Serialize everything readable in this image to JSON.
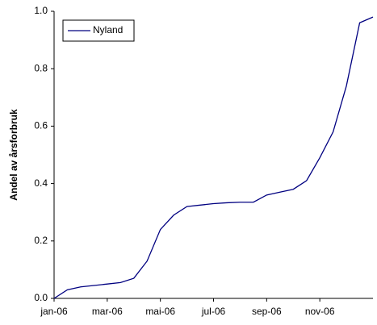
{
  "chart_data": {
    "type": "line",
    "y_label": "Andel av årsforbruk",
    "categories": [
      "jan-06",
      null,
      null,
      null,
      "mar-06",
      null,
      null,
      null,
      "mai-06",
      null,
      null,
      null,
      "jul-06",
      null,
      null,
      null,
      "sep-06",
      null,
      null,
      null,
      "nov-06",
      null,
      null,
      null,
      null
    ],
    "series": [
      {
        "name": "Nyland",
        "color": "#000080",
        "values": [
          0.0,
          0.03,
          0.04,
          0.045,
          0.05,
          0.055,
          0.07,
          0.13,
          0.24,
          0.29,
          0.32,
          0.325,
          0.33,
          0.333,
          0.335,
          0.335,
          0.36,
          0.37,
          0.38,
          0.41,
          0.49,
          0.58,
          0.74,
          0.96,
          0.98
        ]
      }
    ],
    "ylim": [
      0,
      1
    ],
    "yticks": [
      {
        "value": 0,
        "label": "0.0"
      },
      0.2,
      0.4,
      0.6,
      0.8,
      {
        "value": 1,
        "label": "1.0"
      }
    ],
    "legend": "top-left"
  }
}
